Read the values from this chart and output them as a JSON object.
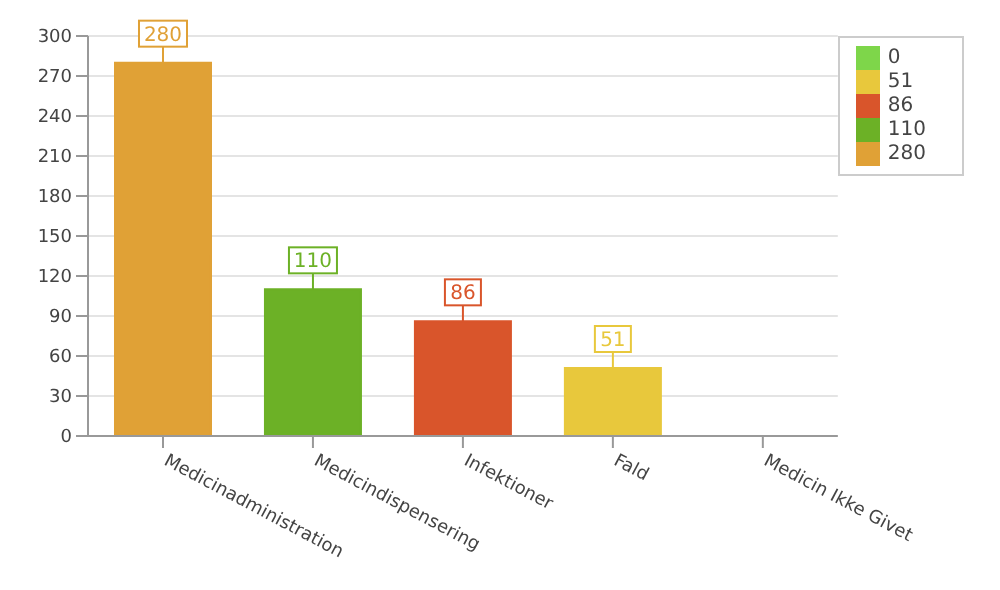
{
  "chart_data": {
    "type": "bar",
    "categories": [
      "Medicinadministration",
      "Medicindispensering",
      "Infektioner",
      "Fald",
      "Medicin Ikke Givet"
    ],
    "series": [
      {
        "name": "0",
        "color": "#7ed64a",
        "values": [
          null,
          null,
          null,
          null,
          0
        ],
        "value_labels": [
          null,
          null,
          null,
          null,
          null
        ]
      },
      {
        "name": "51",
        "color": "#e8c83c",
        "values": [
          null,
          null,
          null,
          51,
          null
        ],
        "value_labels": [
          null,
          null,
          null,
          "51",
          null
        ]
      },
      {
        "name": "86",
        "color": "#d9552b",
        "values": [
          null,
          null,
          86,
          null,
          null
        ],
        "value_labels": [
          null,
          null,
          "86",
          null,
          null
        ]
      },
      {
        "name": "110",
        "color": "#6cb126",
        "values": [
          null,
          110,
          null,
          null,
          null
        ],
        "value_labels": [
          null,
          "110",
          null,
          null,
          null
        ]
      },
      {
        "name": "280",
        "color": "#e0a136",
        "values": [
          280,
          null,
          null,
          null,
          null
        ],
        "value_labels": [
          "280",
          null,
          null,
          null,
          null
        ]
      }
    ],
    "stacked": true,
    "ylim": [
      0,
      300
    ],
    "yticks": [
      0,
      30,
      60,
      90,
      120,
      150,
      180,
      210,
      240,
      270,
      300
    ],
    "grid": "y",
    "legend": "top right"
  }
}
